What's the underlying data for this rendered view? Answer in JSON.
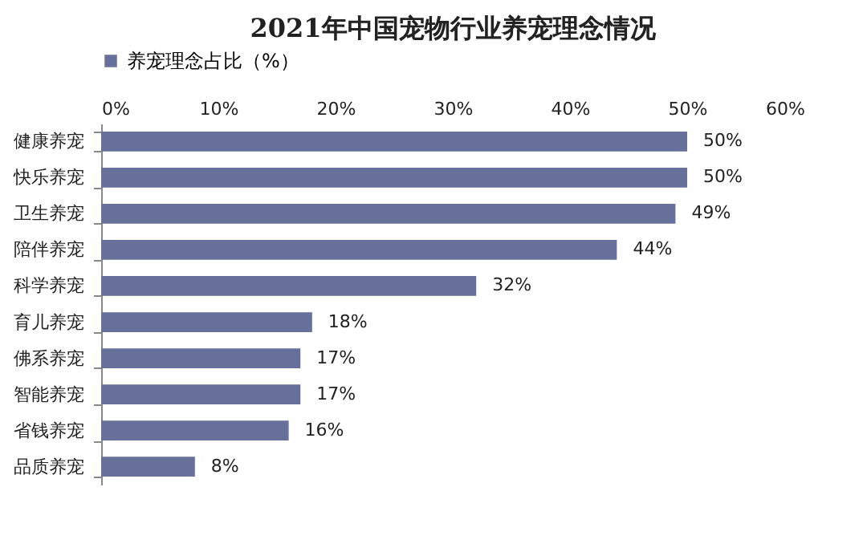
{
  "chart_data": {
    "type": "bar",
    "orientation": "horizontal",
    "title": "2021年中国宠物行业养宠理念情况",
    "categories": [
      "健康养宠",
      "快乐养宠",
      "卫生养宠",
      "陪伴养宠",
      "科学养宠",
      "育儿养宠",
      "佛系养宠",
      "智能养宠",
      "省钱养宠",
      "品质养宠"
    ],
    "series": [
      {
        "name": "养宠理念占比（%）",
        "color": "#66709a",
        "values": [
          50,
          50,
          49,
          44,
          32,
          18,
          17,
          17,
          16,
          8
        ],
        "value_labels": [
          "50%",
          "50%",
          "49%",
          "44%",
          "32%",
          "18%",
          "17%",
          "17%",
          "16%",
          "8%"
        ]
      }
    ],
    "xlim": [
      0,
      60
    ],
    "xticks": [
      {
        "value": 0,
        "label": "0%"
      },
      {
        "value": 10,
        "label": "10%"
      },
      {
        "value": 20,
        "label": "20%"
      },
      {
        "value": 30,
        "label": "30%"
      },
      {
        "value": 40,
        "label": "40%"
      },
      {
        "value": 50,
        "label": "50%"
      },
      {
        "value": 60,
        "label": "60%"
      }
    ],
    "legend": "top",
    "grid": false
  }
}
